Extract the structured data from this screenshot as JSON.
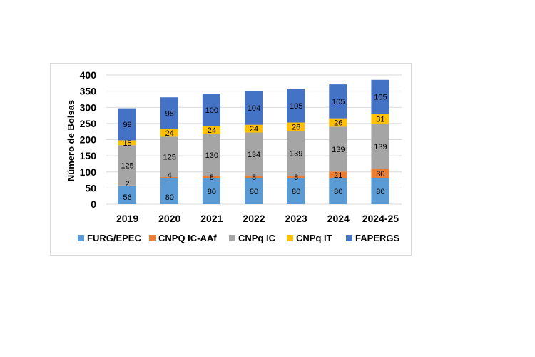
{
  "chart_data": {
    "type": "bar",
    "stacked": true,
    "title": "",
    "xlabel": "",
    "ylabel": "Número de Bolsas",
    "ylim": [
      0,
      400
    ],
    "yticks": [
      0,
      50,
      100,
      150,
      200,
      250,
      300,
      350,
      400
    ],
    "grid": true,
    "legend_position": "bottom",
    "categories": [
      "2019",
      "2020",
      "2021",
      "2022",
      "2023",
      "2024",
      "2024-25"
    ],
    "series": [
      {
        "name": "FURG/EPEC",
        "color": "#5B9BD5",
        "values": [
          56,
          80,
          80,
          80,
          80,
          80,
          80
        ]
      },
      {
        "name": "CNPQ IC-AAf",
        "color": "#ED7D31",
        "values": [
          2,
          4,
          8,
          8,
          8,
          21,
          30
        ]
      },
      {
        "name": "CNPq IC",
        "color": "#A5A5A5",
        "values": [
          125,
          125,
          130,
          134,
          139,
          139,
          139
        ]
      },
      {
        "name": "CNPq IT",
        "color": "#FFC000",
        "values": [
          15,
          24,
          24,
          24,
          26,
          26,
          31
        ]
      },
      {
        "name": "FAPERGS",
        "color": "#4472C4",
        "values": [
          99,
          98,
          100,
          104,
          105,
          105,
          105
        ]
      }
    ]
  }
}
